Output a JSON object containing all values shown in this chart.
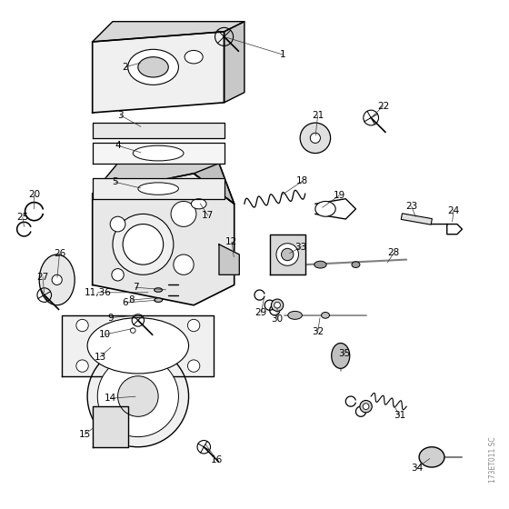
{
  "title": "",
  "background_color": "#ffffff",
  "image_code": "173ET011 SC",
  "line_color": "#000000",
  "label_fontsize": 7.5,
  "watermark": "173ET011 SC"
}
